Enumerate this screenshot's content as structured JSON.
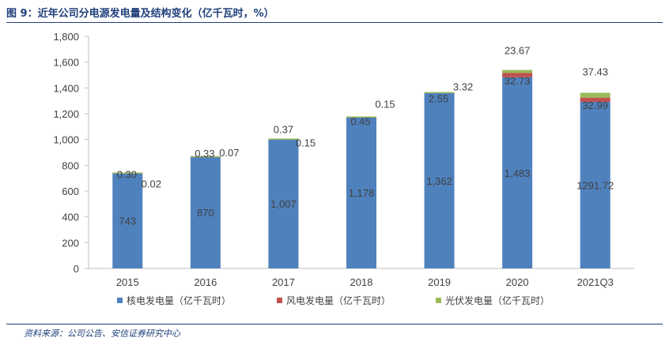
{
  "header": {
    "title": "图 9：近年公司分电源发电量及结构变化（亿千瓦时，%）"
  },
  "footer": {
    "source": "资料来源：公司公告、安信证券研究中心"
  },
  "chart_data": {
    "type": "bar",
    "stacked": true,
    "categories": [
      "2015",
      "2016",
      "2017",
      "2018",
      "2019",
      "2020",
      "2021Q3"
    ],
    "ylim": [
      0,
      1800
    ],
    "yticks": [
      "0",
      "200",
      "400",
      "600",
      "800",
      "1,000",
      "1,200",
      "1,400",
      "1,600",
      "1,800"
    ],
    "ytick_values": [
      0,
      200,
      400,
      600,
      800,
      1000,
      1200,
      1400,
      1600,
      1800
    ],
    "grid": false,
    "legend_position": "bottom",
    "series": [
      {
        "name": "核电发电量（亿千瓦时）",
        "color": "#4f81bd",
        "values": [
          743,
          870,
          1007,
          1178,
          1362,
          1483,
          1291.72
        ],
        "labels": [
          "743",
          "870",
          "1,007",
          "1,178",
          "1,362",
          "1,483",
          "1291.72"
        ]
      },
      {
        "name": "风电发电量（亿千瓦时）",
        "color": "#c0504d",
        "values": [
          0.02,
          0.07,
          0.15,
          0.15,
          3.32,
          32.73,
          32.99
        ],
        "labels": [
          "0.02",
          "0.07",
          "0.15",
          "0.15",
          "3.32",
          "32.73",
          "32.99"
        ]
      },
      {
        "name": "光伏发电量（亿千瓦时）",
        "color": "#9bbb59",
        "values": [
          0.3,
          0.33,
          0.37,
          0.45,
          2.55,
          23.67,
          37.43
        ],
        "labels": [
          "0.30",
          "0.33",
          "0.37",
          "0.45",
          "2.55",
          "23.67",
          "37.43"
        ]
      }
    ]
  }
}
